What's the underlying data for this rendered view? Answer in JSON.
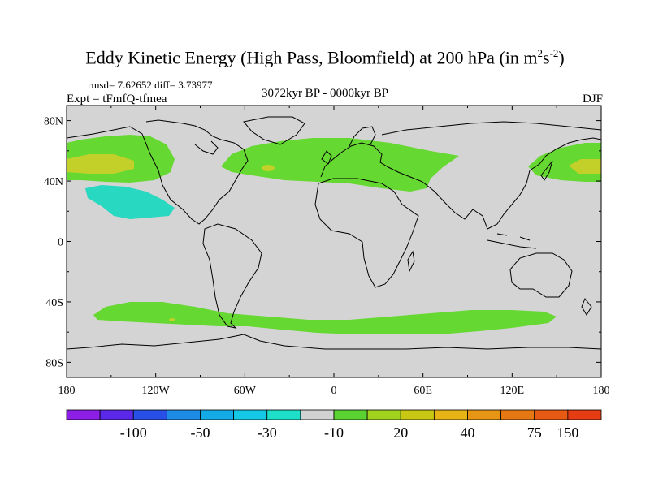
{
  "header": {
    "title_main": "Eddy Kinetic Energy (High Pass, Bloomfield) at 200 hPa (in m",
    "title_sup1": "2",
    "title_mid": "s",
    "title_sup2": "-2",
    "title_end": ")",
    "stats": "rmsd= 7.62652 diff= 3.73977",
    "experiment": "Expt = tFmfQ-tfmea",
    "period": "3072kyr BP - 0000kyr BP",
    "season": "DJF"
  },
  "map": {
    "lat_ticks": [
      "80N",
      "40N",
      "0",
      "40S",
      "80S"
    ],
    "lat_values": [
      80,
      40,
      0,
      -40,
      -80
    ],
    "lon_ticks": [
      "180",
      "120W",
      "60W",
      "0",
      "60E",
      "120E",
      "180"
    ],
    "lon_values": [
      -180,
      -120,
      -60,
      0,
      60,
      120,
      180
    ],
    "colors": {
      "land_ocean_neutral": "#d4d4d4",
      "positive_low": "#66d832",
      "positive_mid": "#aad61e",
      "positive_high": "#d2c81c",
      "negative_low": "#28d8c0"
    },
    "regions": [
      {
        "name": "north-pacific-positive",
        "level": "20 to 40"
      },
      {
        "name": "north-pacific-negative",
        "level": "-30 to -10"
      },
      {
        "name": "north-atlantic-positive",
        "level": "20 to 30"
      },
      {
        "name": "southern-ocean-positive",
        "level": "20 to 30"
      }
    ]
  },
  "colorbar": {
    "colors": [
      "#8c1ee6",
      "#5a28e6",
      "#2850e6",
      "#1e8ce6",
      "#14aae6",
      "#14c8e6",
      "#1ee0c8",
      "#d2d2d2",
      "#5ad232",
      "#a0d21e",
      "#c8c814",
      "#e6b414",
      "#e69614",
      "#e67814",
      "#e65a14",
      "#e63c14"
    ],
    "labels": [
      "-100",
      "-50",
      "-30",
      "-10",
      "20",
      "40",
      "75",
      "150"
    ],
    "label_boundaries": [
      2,
      4,
      6,
      8,
      10,
      12,
      14,
      15
    ]
  }
}
